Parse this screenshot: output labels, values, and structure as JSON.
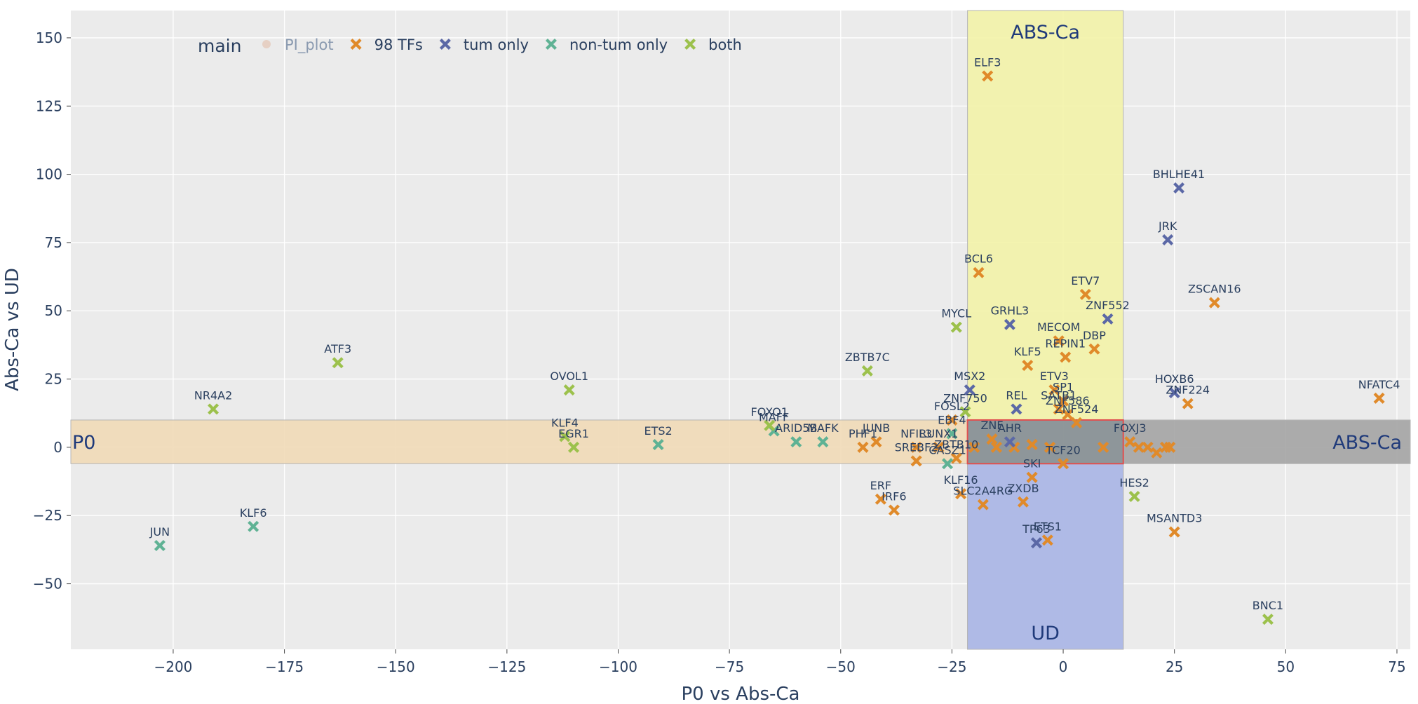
{
  "chart_data": {
    "type": "scatter",
    "xlabel": "P0 vs Abs-Ca",
    "ylabel": "Abs-Ca vs UD",
    "xlim": [
      -223,
      78
    ],
    "ylim": [
      -74,
      160
    ],
    "xticks": [
      -200,
      -175,
      -150,
      -125,
      -100,
      -75,
      -50,
      -25,
      0,
      25,
      50,
      75
    ],
    "yticks": [
      -50,
      -25,
      0,
      25,
      50,
      75,
      100,
      125,
      150
    ],
    "grid": true,
    "legend": {
      "placement": "top-left",
      "title": "main",
      "entries": [
        {
          "name": "PI_plot",
          "color": "#e4c4b4",
          "marker": "circle",
          "faded": true
        },
        {
          "name": "98 TFs",
          "color": "#e08a2a",
          "marker": "x"
        },
        {
          "name": "tum only",
          "color": "#5b68a6",
          "marker": "x"
        },
        {
          "name": "non-tum only",
          "color": "#5fb294",
          "marker": "x"
        },
        {
          "name": "both",
          "color": "#9cc14c",
          "marker": "x"
        }
      ]
    },
    "regions": [
      {
        "label": "ABS-Ca",
        "x": [
          -21.5,
          13.5
        ],
        "y": [
          -74,
          160
        ],
        "color": "#f2f2a6",
        "label_anchor": "top"
      },
      {
        "label": "P0",
        "x": [
          -223,
          -21.5
        ],
        "y": [
          -6,
          10
        ],
        "color": "#f0d9b5",
        "label_anchor": "left"
      },
      {
        "label": "ABS-Ca",
        "x": [
          13.5,
          78
        ],
        "y": [
          -6,
          10
        ],
        "color": "#a2a2a2",
        "label_anchor": "right"
      },
      {
        "label": "UD",
        "x": [
          -21.5,
          13.5
        ],
        "y": [
          -74,
          -6
        ],
        "color": "#a5b2ee",
        "label_anchor": "bottom"
      },
      {
        "label": "",
        "x": [
          -21.5,
          13.5
        ],
        "y": [
          -6,
          10
        ],
        "color": "#3c4a88",
        "label_anchor": "none"
      }
    ],
    "series": [
      {
        "name": "98 TFs",
        "color": "#e08a2a",
        "points": [
          {
            "label": "ELF3",
            "x": -17,
            "y": 136
          },
          {
            "label": "BCL6",
            "x": -19,
            "y": 64
          },
          {
            "label": "ETV7",
            "x": 5,
            "y": 56
          },
          {
            "label": "ZSCAN16",
            "x": 34,
            "y": 53
          },
          {
            "label": "MECOM",
            "x": -1,
            "y": 39
          },
          {
            "label": "DBP",
            "x": 7,
            "y": 36
          },
          {
            "label": "REPIN1",
            "x": 0.5,
            "y": 33
          },
          {
            "label": "KLF5",
            "x": -8,
            "y": 30
          },
          {
            "label": "NFATC4",
            "x": 71,
            "y": 18
          },
          {
            "label": "ZNF224",
            "x": 28,
            "y": 16
          },
          {
            "label": "ETV3",
            "x": -2,
            "y": 21
          },
          {
            "label": "SATB1",
            "x": -1,
            "y": 14
          },
          {
            "label": "ZNF586",
            "x": 1,
            "y": 12
          },
          {
            "label": "SP1",
            "x": 0,
            "y": 17
          },
          {
            "label": "FOSL2",
            "x": -25,
            "y": 10
          },
          {
            "label": "JUNB",
            "x": -42,
            "y": 2
          },
          {
            "label": "PHF1",
            "x": -45,
            "y": 0
          },
          {
            "label": "NFIL3",
            "x": -33,
            "y": 0
          },
          {
            "label": "SREBF2",
            "x": -33,
            "y": -5
          },
          {
            "label": "ZBTB10",
            "x": -24,
            "y": -4
          },
          {
            "label": "RUNX1",
            "x": -28,
            "y": 0
          },
          {
            "label": "ERF",
            "x": -41,
            "y": -19
          },
          {
            "label": "IRF6",
            "x": -38,
            "y": -23
          },
          {
            "label": "KLF16",
            "x": -23,
            "y": -17
          },
          {
            "label": "SLC2A4RG",
            "x": -18,
            "y": -21
          },
          {
            "label": "ZXDB",
            "x": -9,
            "y": -20
          },
          {
            "label": "SKI",
            "x": -7,
            "y": -11
          },
          {
            "label": "ETS1",
            "x": -3.5,
            "y": -34
          },
          {
            "label": "MSANTD3",
            "x": 25,
            "y": -31
          },
          {
            "label": "TCF20",
            "x": 0,
            "y": -6
          },
          {
            "label": "FOXJ3",
            "x": 15,
            "y": 2
          },
          {
            "label": "ZNF524",
            "x": 3,
            "y": 9
          },
          {
            "label": "ZNF",
            "x": -16,
            "y": 3
          },
          {
            "label": "",
            "x": -20,
            "y": 0
          },
          {
            "label": "",
            "x": -15,
            "y": 0
          },
          {
            "label": "",
            "x": -11,
            "y": 0
          },
          {
            "label": "",
            "x": -7,
            "y": 1
          },
          {
            "label": "",
            "x": -3,
            "y": 0
          },
          {
            "label": "",
            "x": 9,
            "y": 0
          },
          {
            "label": "",
            "x": 17,
            "y": 0
          },
          {
            "label": "",
            "x": 19,
            "y": 0
          },
          {
            "label": "",
            "x": 21,
            "y": -2
          },
          {
            "label": "",
            "x": 23,
            "y": 0
          },
          {
            "label": "",
            "x": 24,
            "y": 0
          }
        ]
      },
      {
        "name": "tum only",
        "color": "#5b68a6",
        "points": [
          {
            "label": "BHLHE41",
            "x": 26,
            "y": 95
          },
          {
            "label": "JRK",
            "x": 23.5,
            "y": 76
          },
          {
            "label": "ZNF552",
            "x": 10,
            "y": 47
          },
          {
            "label": "GRHL3",
            "x": -12,
            "y": 45
          },
          {
            "label": "HOXB6",
            "x": 25,
            "y": 20
          },
          {
            "label": "MSX2",
            "x": -21,
            "y": 21
          },
          {
            "label": "REL",
            "x": -10.5,
            "y": 14
          },
          {
            "label": "TP63",
            "x": -6,
            "y": -35
          },
          {
            "label": "AHR",
            "x": -12,
            "y": 2
          }
        ]
      },
      {
        "name": "non-tum only",
        "color": "#5fb294",
        "points": [
          {
            "label": "JUN",
            "x": -203,
            "y": -36
          },
          {
            "label": "KLF6",
            "x": -182,
            "y": -29
          },
          {
            "label": "ETS2",
            "x": -91,
            "y": 1
          },
          {
            "label": "MAFF",
            "x": -65,
            "y": 6
          },
          {
            "label": "ARID5B",
            "x": -60,
            "y": 2
          },
          {
            "label": "MAFK",
            "x": -54,
            "y": 2
          },
          {
            "label": "CASZ1",
            "x": -26,
            "y": -6
          },
          {
            "label": "EBF4",
            "x": -25,
            "y": 5
          }
        ]
      },
      {
        "name": "both",
        "color": "#9cc14c",
        "points": [
          {
            "label": "ATF3",
            "x": -163,
            "y": 31
          },
          {
            "label": "NR4A2",
            "x": -191,
            "y": 14
          },
          {
            "label": "OVOL1",
            "x": -111,
            "y": 21
          },
          {
            "label": "KLF4",
            "x": -112,
            "y": 4
          },
          {
            "label": "EGR1",
            "x": -110,
            "y": 0
          },
          {
            "label": "FOXO1",
            "x": -66,
            "y": 8
          },
          {
            "label": "ZBTB7C",
            "x": -44,
            "y": 28
          },
          {
            "label": "MYCL",
            "x": -24,
            "y": 44
          },
          {
            "label": "ZNF750",
            "x": -22,
            "y": 13
          },
          {
            "label": "HES2",
            "x": 16,
            "y": -18
          },
          {
            "label": "BNC1",
            "x": 46,
            "y": -63
          }
        ]
      }
    ]
  }
}
